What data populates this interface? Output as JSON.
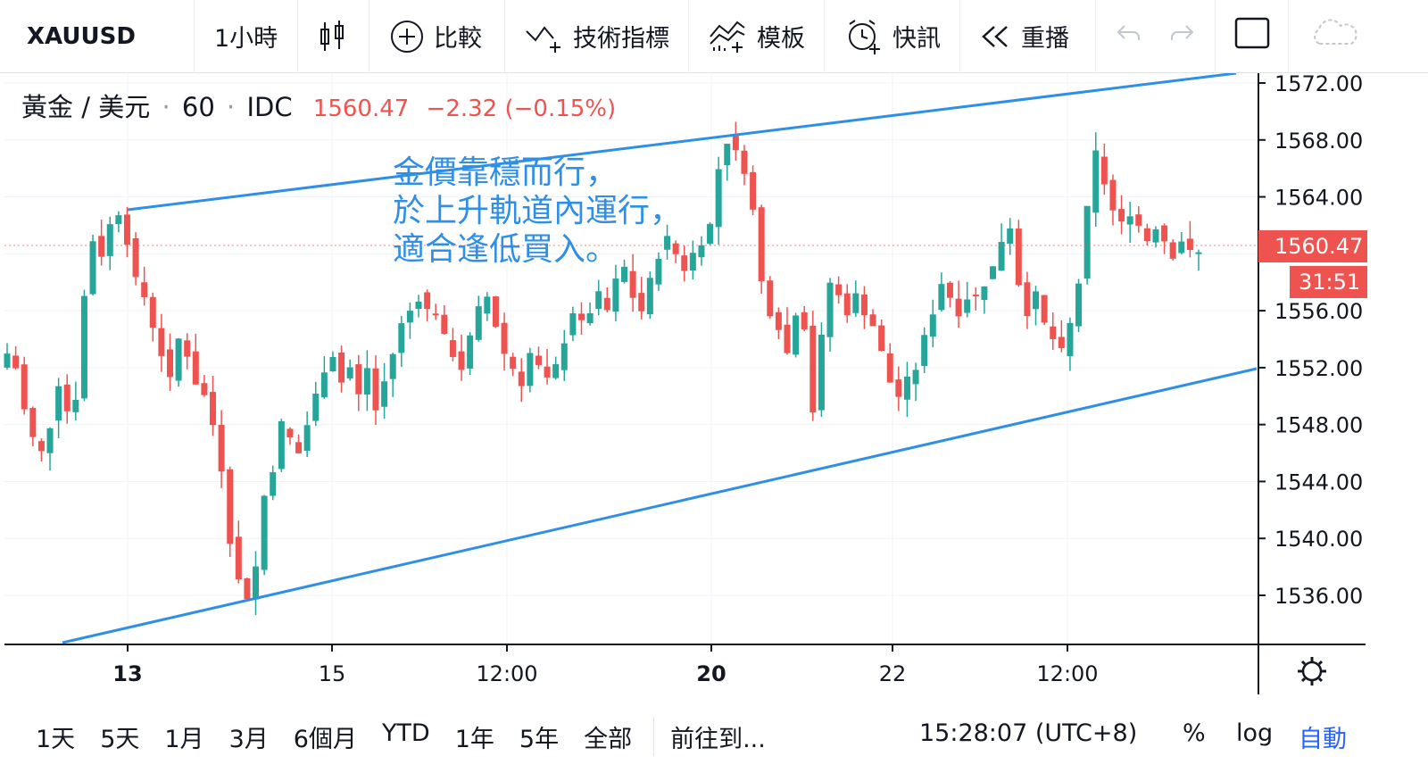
{
  "toolbar": {
    "symbol": "XAUUSD",
    "interval": "1小時",
    "compare_label": "比較",
    "indicators_label": "技術指標",
    "templates_label": "模板",
    "alerts_label": "快訊",
    "replay_label": "重播",
    "bar_style_icon": "candles-icon",
    "compare_icon": "plus-circle-icon",
    "indicators_icon": "indicator-icon",
    "templates_icon": "template-icon",
    "alerts_icon": "alarm-clock-icon",
    "replay_icon": "rewind-icon",
    "undo_icon": "undo-icon",
    "redo_icon": "redo-icon",
    "fullscreen_icon": "fullscreen-icon",
    "cloud_icon": "cloud-icon"
  },
  "legend": {
    "name": "黃金 / 美元",
    "interval": "60",
    "source": "IDC",
    "sep": "·",
    "last": "1560.47",
    "change": "−2.32 (−0.15%)"
  },
  "annotation": {
    "line1": "金價靠穩而行，",
    "line2": "於上升軌道內運行，",
    "line3": "適合逢低買入。"
  },
  "price_axis": {
    "current_price": "1560.47",
    "countdown": "31:51",
    "settings_icon": "gear-icon"
  },
  "bottom": {
    "ranges": [
      "1天",
      "5天",
      "1月",
      "3月",
      "6個月",
      "YTD",
      "1年",
      "5年",
      "全部"
    ],
    "goto": "前往到...",
    "clock": "15:28:07 (UTC+8)",
    "percent": "%",
    "log": "log",
    "auto": "自動"
  },
  "colors": {
    "up": "#26a69a",
    "down": "#ef5350",
    "channel": "#2f8fe6",
    "accent": "#2962ff"
  },
  "chart_data": {
    "type": "candlestick",
    "title": "黃金 / 美元 · 60 · IDC",
    "ylim": [
      1532,
      1573
    ],
    "y_ticks": [
      "1536.00",
      "1540.00",
      "1544.00",
      "1548.00",
      "1552.00",
      "1556.00",
      "1560.00",
      "1564.00",
      "1568.00",
      "1572.00"
    ],
    "x_ticks": [
      {
        "label": "13",
        "bold": true
      },
      {
        "label": "15",
        "bold": false
      },
      {
        "label": "12:00",
        "bold": false
      },
      {
        "label": "20",
        "bold": true
      },
      {
        "label": "22",
        "bold": false
      },
      {
        "label": "12:00",
        "bold": false
      }
    ],
    "close_path": [
      1553,
      1552,
      1549,
      1547,
      1546,
      1548,
      1551,
      1549,
      1550,
      1557,
      1561,
      1560,
      1562,
      1563,
      1561,
      1558,
      1557,
      1555,
      1553,
      1551,
      1554,
      1553,
      1551,
      1550,
      1548,
      1545,
      1540,
      1537,
      1536,
      1538,
      1543,
      1545,
      1548,
      1547,
      1546,
      1548,
      1550,
      1552,
      1553,
      1551,
      1552,
      1550,
      1552,
      1549,
      1551,
      1553,
      1555,
      1556,
      1557,
      1556,
      1556,
      1554,
      1553,
      1552,
      1554,
      1556,
      1557,
      1555,
      1553,
      1552,
      1551,
      1553,
      1552,
      1551,
      1552,
      1554,
      1556,
      1555,
      1556,
      1557,
      1556,
      1558,
      1559,
      1557,
      1556,
      1558,
      1560,
      1561,
      1560,
      1559,
      1560,
      1561,
      1562,
      1566,
      1568,
      1567,
      1566,
      1563,
      1558,
      1556,
      1555,
      1553,
      1556,
      1555,
      1549,
      1554,
      1558,
      1557,
      1556,
      1557,
      1556,
      1555,
      1553,
      1551,
      1550,
      1551,
      1552,
      1554,
      1556,
      1558,
      1557,
      1556,
      1557,
      1557,
      1558,
      1559,
      1561,
      1562,
      1558,
      1556,
      1557,
      1555,
      1554,
      1553,
      1555,
      1558,
      1563,
      1567,
      1565,
      1563,
      1562,
      1563,
      1562,
      1561,
      1562,
      1561,
      1560,
      1561,
      1560,
      1560
    ]
  }
}
